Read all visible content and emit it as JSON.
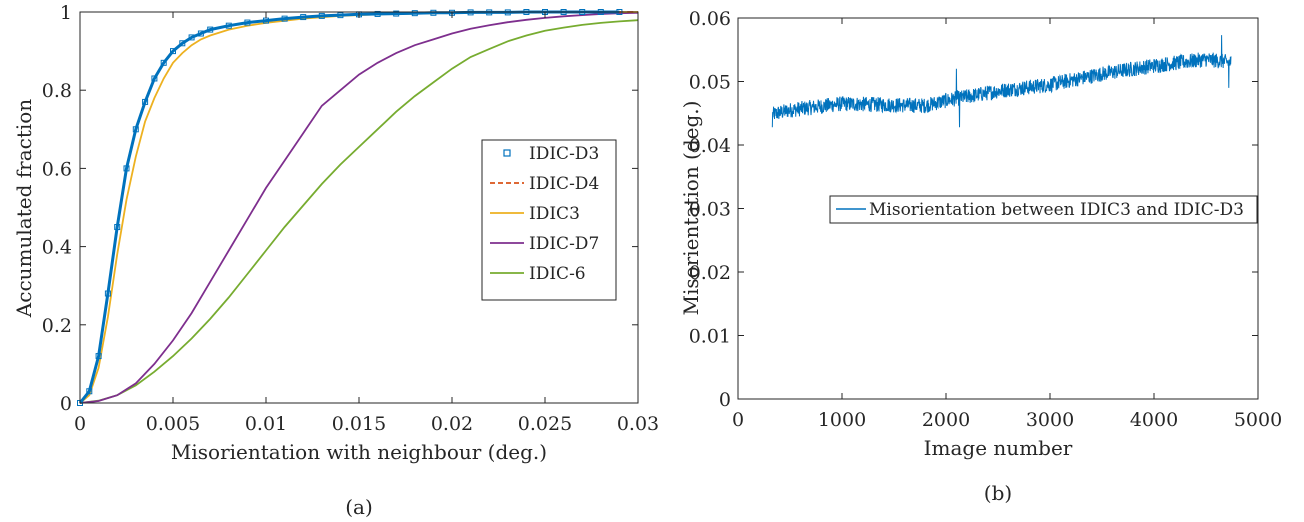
{
  "chart_data": [
    {
      "type": "line",
      "xlabel": "Misorientation with neighbour (deg.)",
      "ylabel": "Accumulated fraction",
      "xlim": [
        0,
        0.03
      ],
      "ylim": [
        0,
        1
      ],
      "xticks": [
        0,
        0.005,
        0.01,
        0.015,
        0.02,
        0.025,
        0.03
      ],
      "xtick_labels": [
        "0",
        "0.005",
        "0.01",
        "0.015",
        "0.02",
        "0.025",
        "0.03"
      ],
      "yticks": [
        0,
        0.2,
        0.4,
        0.6,
        0.8,
        1
      ],
      "ytick_labels": [
        "0",
        "0.2",
        "0.4",
        "0.6",
        "0.8",
        "1"
      ],
      "caption": "(a)",
      "legend_position": "center-right",
      "series": [
        {
          "name": "IDIC-D3",
          "color": "#0072BD",
          "style": "markers",
          "x": [
            0,
            0.0005,
            0.001,
            0.0015,
            0.002,
            0.0025,
            0.003,
            0.0035,
            0.004,
            0.0045,
            0.005,
            0.0055,
            0.006,
            0.0065,
            0.007,
            0.008,
            0.009,
            0.01,
            0.011,
            0.012,
            0.013,
            0.014,
            0.015,
            0.016,
            0.017,
            0.018,
            0.019,
            0.02,
            0.021,
            0.022,
            0.023,
            0.024,
            0.025,
            0.026,
            0.027,
            0.028,
            0.029
          ],
          "y": [
            0,
            0.03,
            0.12,
            0.28,
            0.45,
            0.6,
            0.7,
            0.77,
            0.83,
            0.87,
            0.9,
            0.92,
            0.935,
            0.945,
            0.955,
            0.965,
            0.973,
            0.978,
            0.983,
            0.987,
            0.99,
            0.992,
            0.994,
            0.995,
            0.996,
            0.997,
            0.998,
            0.998,
            0.999,
            0.999,
            0.999,
            1,
            1,
            1,
            1,
            1,
            1
          ]
        },
        {
          "name": "IDIC-D4",
          "color": "#D95319",
          "style": "dashed",
          "x": [
            0,
            0.0005,
            0.001,
            0.0015,
            0.002,
            0.0025,
            0.003,
            0.0035,
            0.004,
            0.0045,
            0.005,
            0.0055,
            0.006,
            0.0065,
            0.007,
            0.008,
            0.009,
            0.01,
            0.012,
            0.014,
            0.016,
            0.018,
            0.02,
            0.025,
            0.03
          ],
          "y": [
            0,
            0.03,
            0.12,
            0.28,
            0.45,
            0.6,
            0.7,
            0.77,
            0.83,
            0.87,
            0.9,
            0.92,
            0.935,
            0.945,
            0.955,
            0.965,
            0.973,
            0.978,
            0.987,
            0.992,
            0.995,
            0.997,
            0.998,
            1,
            1
          ]
        },
        {
          "name": "IDIC3",
          "color": "#EDB120",
          "style": "solid",
          "x": [
            0,
            0.0005,
            0.001,
            0.0015,
            0.002,
            0.0025,
            0.003,
            0.0035,
            0.004,
            0.0045,
            0.005,
            0.0055,
            0.006,
            0.0065,
            0.007,
            0.008,
            0.009,
            0.01,
            0.012,
            0.014,
            0.016,
            0.018,
            0.02,
            0.025,
            0.03
          ],
          "y": [
            0,
            0.02,
            0.09,
            0.22,
            0.38,
            0.52,
            0.63,
            0.72,
            0.78,
            0.83,
            0.87,
            0.895,
            0.915,
            0.93,
            0.94,
            0.955,
            0.965,
            0.972,
            0.983,
            0.99,
            0.994,
            0.996,
            0.998,
            1,
            1
          ]
        },
        {
          "name": "IDIC-D7",
          "color": "#7E2F8E",
          "style": "solid",
          "x": [
            0,
            0.001,
            0.002,
            0.003,
            0.004,
            0.005,
            0.006,
            0.007,
            0.008,
            0.009,
            0.01,
            0.011,
            0.012,
            0.013,
            0.014,
            0.015,
            0.016,
            0.017,
            0.018,
            0.019,
            0.02,
            0.021,
            0.022,
            0.023,
            0.024,
            0.025,
            0.026,
            0.027,
            0.028,
            0.029,
            0.03
          ],
          "y": [
            0,
            0.005,
            0.02,
            0.05,
            0.1,
            0.16,
            0.23,
            0.31,
            0.39,
            0.47,
            0.55,
            0.62,
            0.69,
            0.76,
            0.8,
            0.84,
            0.87,
            0.895,
            0.915,
            0.93,
            0.945,
            0.957,
            0.966,
            0.974,
            0.98,
            0.985,
            0.989,
            0.992,
            0.995,
            0.997,
            0.998
          ]
        },
        {
          "name": "IDIC-6",
          "color": "#77AC30",
          "style": "solid",
          "x": [
            0,
            0.001,
            0.002,
            0.003,
            0.004,
            0.005,
            0.006,
            0.007,
            0.008,
            0.009,
            0.01,
            0.011,
            0.012,
            0.013,
            0.014,
            0.015,
            0.016,
            0.017,
            0.018,
            0.019,
            0.02,
            0.021,
            0.022,
            0.023,
            0.024,
            0.025,
            0.026,
            0.027,
            0.028,
            0.029,
            0.03
          ],
          "y": [
            0,
            0.006,
            0.02,
            0.045,
            0.08,
            0.12,
            0.165,
            0.215,
            0.27,
            0.33,
            0.39,
            0.45,
            0.505,
            0.56,
            0.61,
            0.655,
            0.7,
            0.745,
            0.785,
            0.82,
            0.855,
            0.885,
            0.905,
            0.925,
            0.94,
            0.952,
            0.96,
            0.967,
            0.972,
            0.976,
            0.979
          ]
        }
      ]
    },
    {
      "type": "line",
      "xlabel": "Image number",
      "ylabel": "Misorientation (deg.)",
      "xlim": [
        0,
        5000
      ],
      "ylim": [
        0,
        0.06
      ],
      "xticks": [
        0,
        1000,
        2000,
        3000,
        4000,
        5000
      ],
      "xtick_labels": [
        "0",
        "1000",
        "2000",
        "3000",
        "4000",
        "5000"
      ],
      "yticks": [
        0,
        0.01,
        0.02,
        0.03,
        0.04,
        0.05,
        0.06
      ],
      "ytick_labels": [
        "0",
        "0.01",
        "0.02",
        "0.03",
        "0.04",
        "0.05",
        "0.06"
      ],
      "caption": "(b)",
      "legend_position": "center-right",
      "series": [
        {
          "name": "Misorientation between IDIC3 and IDIC-D3",
          "color": "#0072BD",
          "style": "solid",
          "x_range": [
            330,
            4740
          ],
          "trend": {
            "x": [
              330,
              500,
              1000,
              1500,
              1800,
              2000,
              2500,
              3000,
              3500,
              4000,
              4500,
              4740
            ],
            "y": [
              0.0448,
              0.0455,
              0.0465,
              0.0463,
              0.0462,
              0.047,
              0.0485,
              0.0495,
              0.0512,
              0.0525,
              0.0535,
              0.053
            ]
          },
          "noise_amplitude": 0.0012,
          "spikes": [
            {
              "x": 2100,
              "y": 0.052
            },
            {
              "x": 2130,
              "y": 0.0428
            },
            {
              "x": 4650,
              "y": 0.0573
            },
            {
              "x": 4720,
              "y": 0.049
            },
            {
              "x": 330,
              "y": 0.0428
            }
          ]
        }
      ]
    }
  ]
}
